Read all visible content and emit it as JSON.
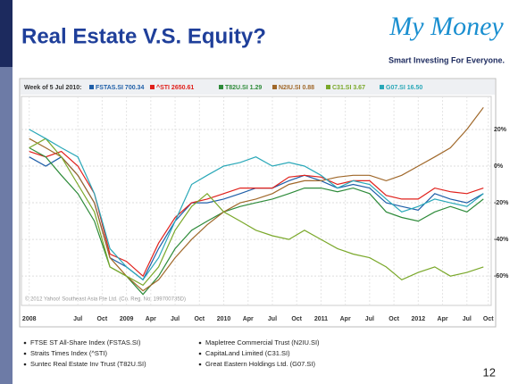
{
  "slide": {
    "title": "Real Estate V.S. Equity?",
    "logo_title": "My Money",
    "logo_tagline": "Smart Investing For Everyone.",
    "page_number": "12"
  },
  "chart_data": {
    "type": "line",
    "legend_prefix": "Week of 5 Jul 2010:",
    "copyright": "© 2012 Yahoo! Southeast Asia Pte Ltd. (Co. Reg. No. 199700735D)",
    "x": [
      2008.0,
      2008.17,
      2008.33,
      2008.5,
      2008.67,
      2008.83,
      2009.0,
      2009.17,
      2009.33,
      2009.5,
      2009.67,
      2009.83,
      2010.0,
      2010.17,
      2010.33,
      2010.5,
      2010.67,
      2010.83,
      2011.0,
      2011.17,
      2011.33,
      2011.5,
      2011.67,
      2011.83,
      2012.0,
      2012.17,
      2012.33,
      2012.5,
      2012.67
    ],
    "series": [
      {
        "name": "FSTAS.SI 700.34",
        "color": "#1f5fa8",
        "values": [
          5,
          0,
          5,
          -5,
          -20,
          -50,
          -55,
          -62,
          -45,
          -30,
          -20,
          -20,
          -18,
          -15,
          -12,
          -12,
          -8,
          -5,
          -8,
          -12,
          -10,
          -12,
          -20,
          -22,
          -24,
          -15,
          -18,
          -20,
          -15
        ]
      },
      {
        "name": "^STI 2650.61",
        "color": "#e0201b",
        "values": [
          8,
          5,
          8,
          0,
          -15,
          -48,
          -52,
          -60,
          -42,
          -28,
          -20,
          -18,
          -15,
          -12,
          -12,
          -12,
          -6,
          -5,
          -6,
          -10,
          -8,
          -8,
          -16,
          -18,
          -18,
          -12,
          -14,
          -15,
          -12
        ]
      },
      {
        "name": "T82U.SI 1.29",
        "color": "#2e8b3a",
        "values": [
          10,
          5,
          -5,
          -15,
          -30,
          -55,
          -60,
          -70,
          -60,
          -45,
          -35,
          -30,
          -25,
          -22,
          -20,
          -18,
          -15,
          -12,
          -12,
          -14,
          -12,
          -15,
          -25,
          -28,
          -30,
          -25,
          -22,
          -25,
          -18
        ]
      },
      {
        "name": "N2IU.SI 0.88",
        "color": "#a0682a",
        "values": [
          15,
          10,
          5,
          -5,
          -20,
          -50,
          -60,
          -68,
          -62,
          -50,
          -40,
          -32,
          -25,
          -20,
          -18,
          -15,
          -10,
          -8,
          -8,
          -6,
          -5,
          -5,
          -8,
          -5,
          0,
          5,
          10,
          20,
          32
        ]
      },
      {
        "name": "C31.SI 3.67",
        "color": "#7aa82a",
        "values": [
          10,
          15,
          5,
          -10,
          -25,
          -55,
          -60,
          -65,
          -55,
          -35,
          -22,
          -15,
          -25,
          -30,
          -35,
          -38,
          -40,
          -35,
          -40,
          -45,
          -48,
          -50,
          -55,
          -62,
          -58,
          -55,
          -60,
          -58,
          -55
        ]
      },
      {
        "name": "G07.SI 16.50",
        "color": "#2aa8b8",
        "values": [
          20,
          15,
          10,
          5,
          -15,
          -45,
          -55,
          -62,
          -50,
          -30,
          -10,
          -5,
          0,
          2,
          5,
          0,
          2,
          0,
          -5,
          -12,
          -8,
          -10,
          -18,
          -25,
          -22,
          -18,
          -20,
          -22,
          -15
        ]
      }
    ],
    "xlim": [
      2007.92,
      2012.75
    ],
    "xticks": [
      {
        "value": 2008,
        "label": "2008"
      },
      {
        "value": 2008.5,
        "label": "Jul"
      },
      {
        "value": 2008.75,
        "label": "Oct"
      },
      {
        "value": 2009,
        "label": "2009"
      },
      {
        "value": 2009.25,
        "label": "Apr"
      },
      {
        "value": 2009.5,
        "label": "Jul"
      },
      {
        "value": 2009.75,
        "label": "Oct"
      },
      {
        "value": 2010,
        "label": "2010"
      },
      {
        "value": 2010.25,
        "label": "Apr"
      },
      {
        "value": 2010.5,
        "label": "Jul"
      },
      {
        "value": 2010.75,
        "label": "Oct"
      },
      {
        "value": 2011,
        "label": "2011"
      },
      {
        "value": 2011.25,
        "label": "Apr"
      },
      {
        "value": 2011.5,
        "label": "Jul"
      },
      {
        "value": 2011.75,
        "label": "Oct"
      },
      {
        "value": 2012,
        "label": "2012"
      },
      {
        "value": 2012.25,
        "label": "Apr"
      },
      {
        "value": 2012.5,
        "label": "Jul"
      },
      {
        "value": 2012.72,
        "label": "Oct"
      }
    ],
    "ylim": [
      -76,
      38
    ],
    "yticks": [
      {
        "value": 20,
        "label": "20%"
      },
      {
        "value": 0,
        "label": "0%"
      },
      {
        "value": -20,
        "label": "-20%"
      },
      {
        "value": -40,
        "label": "-40%"
      },
      {
        "value": -60,
        "label": "-60%"
      }
    ],
    "grid": true
  },
  "bullets": {
    "left": [
      "FTSE ST All-Share Index (FSTAS.SI)",
      "Straits Times Index (^STI)",
      "Suntec Real Estate Inv Trust (T82U.SI)"
    ],
    "right": [
      "Mapletree Commercial Trust (N2IU.SI)",
      "CapitaLand Limited (C31.SI)",
      "Great Eastern Holdings Ltd. (G07.SI)"
    ]
  }
}
